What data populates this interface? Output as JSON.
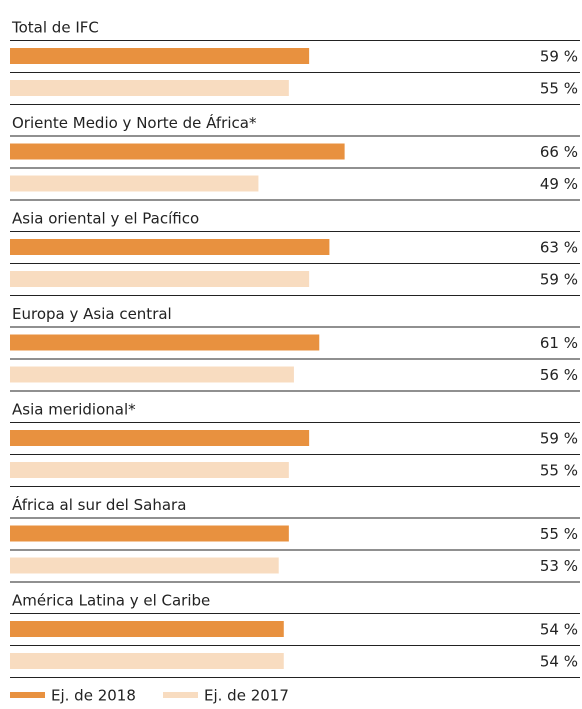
{
  "chart_data": {
    "type": "bar",
    "categories": [
      "Total de IFC",
      "Oriente Medio y Norte de África*",
      "Asia oriental y el Pacífico",
      "Europa y Asia central",
      "Asia meridional*",
      "África al sur del Sahara",
      "América Latina y el Caribe"
    ],
    "series": [
      {
        "name": "Ej. de 2018",
        "color": "#e8913f",
        "values": [
          59,
          66,
          63,
          61,
          59,
          55,
          54
        ],
        "value_labels": [
          "59 %",
          "66 %",
          "63 %",
          "61 %",
          "59 %",
          "55 %",
          "54 %"
        ]
      },
      {
        "name": "Ej. de 2017",
        "color": "#f8dcc0",
        "values": [
          55,
          49,
          59,
          56,
          55,
          53,
          54
        ],
        "value_labels": [
          "55 %",
          "49 %",
          "59 %",
          "56 %",
          "55 %",
          "53 %",
          "54 %"
        ]
      }
    ]
  }
}
